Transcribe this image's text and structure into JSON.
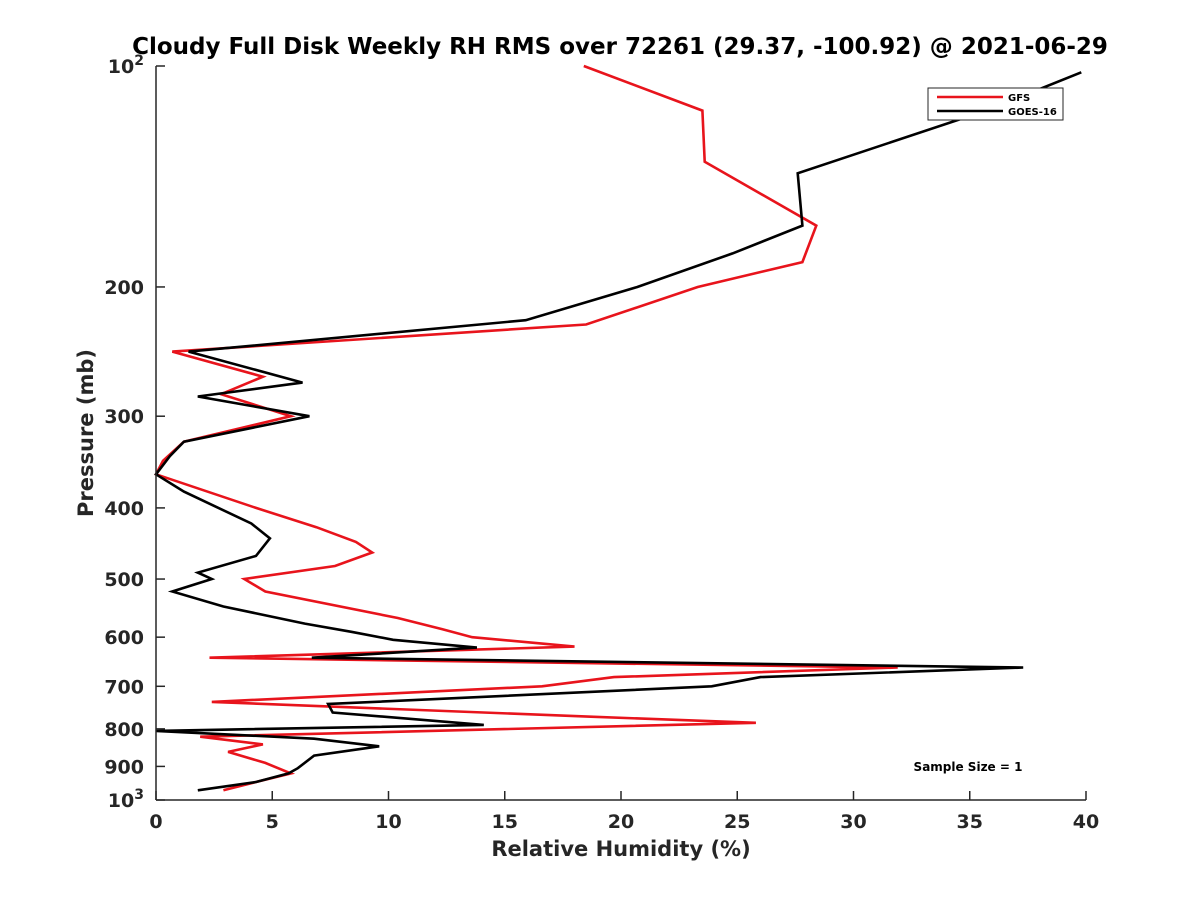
{
  "chart_data": {
    "type": "line",
    "title": "Cloudy Full Disk Weekly RH RMS over 72261 (29.37, -100.92) @ 2021-06-29",
    "xlabel": "Relative Humidity (%)",
    "ylabel": "Pressure (mb)",
    "xlim": [
      0,
      40
    ],
    "ylim": [
      100,
      1000
    ],
    "yscale": "log",
    "yreversed": true,
    "x_ticks": [
      "0",
      "5",
      "10",
      "15",
      "20",
      "25",
      "30",
      "35",
      "40"
    ],
    "y_ticks": [
      {
        "value": 100,
        "base": "10",
        "exp": "2"
      },
      {
        "value": 200,
        "label": "200"
      },
      {
        "value": 300,
        "label": "300"
      },
      {
        "value": 400,
        "label": "400"
      },
      {
        "value": 500,
        "label": "500"
      },
      {
        "value": 600,
        "label": "600"
      },
      {
        "value": 700,
        "label": "700"
      },
      {
        "value": 800,
        "label": "800"
      },
      {
        "value": 900,
        "label": "900"
      },
      {
        "value": 1000,
        "base": "10",
        "exp": "3"
      }
    ],
    "grid": false,
    "legend_position": "top-right",
    "annotation": "Sample Size = 1",
    "series": [
      {
        "name": "GFS",
        "color": "#e8141c",
        "points": [
          [
            18.4,
            100
          ],
          [
            23.5,
            115
          ],
          [
            23.6,
            135
          ],
          [
            28.4,
            165
          ],
          [
            27.8,
            185
          ],
          [
            23.3,
            200
          ],
          [
            18.5,
            225
          ],
          [
            0.7,
            245
          ],
          [
            4.6,
            265
          ],
          [
            2.8,
            280
          ],
          [
            5.8,
            300
          ],
          [
            1.2,
            325
          ],
          [
            0.3,
            345
          ],
          [
            0.0,
            360
          ],
          [
            4.3,
            400
          ],
          [
            6.9,
            425
          ],
          [
            8.6,
            445
          ],
          [
            9.3,
            460
          ],
          [
            7.7,
            480
          ],
          [
            3.8,
            500
          ],
          [
            4.7,
            520
          ],
          [
            10.4,
            565
          ],
          [
            12.3,
            585
          ],
          [
            13.6,
            600
          ],
          [
            18.0,
            618
          ],
          [
            2.3,
            640
          ],
          [
            31.9,
            660
          ],
          [
            19.7,
            680
          ],
          [
            16.6,
            700
          ],
          [
            2.4,
            735
          ],
          [
            18.7,
            770
          ],
          [
            25.8,
            785
          ],
          [
            1.9,
            820
          ],
          [
            4.6,
            840
          ],
          [
            3.1,
            860
          ],
          [
            4.7,
            890
          ],
          [
            5.8,
            920
          ],
          [
            4.3,
            945
          ],
          [
            2.9,
            970
          ]
        ]
      },
      {
        "name": "GOES-16",
        "color": "#000000",
        "points": [
          [
            39.8,
            102
          ],
          [
            35.7,
            115
          ],
          [
            27.6,
            140
          ],
          [
            27.8,
            165
          ],
          [
            24.8,
            180
          ],
          [
            20.7,
            200
          ],
          [
            15.9,
            222
          ],
          [
            1.4,
            245
          ],
          [
            6.3,
            270
          ],
          [
            1.8,
            282
          ],
          [
            6.6,
            300
          ],
          [
            1.2,
            325
          ],
          [
            0.6,
            340
          ],
          [
            0.0,
            360
          ],
          [
            1.2,
            380
          ],
          [
            4.1,
            420
          ],
          [
            4.9,
            440
          ],
          [
            4.3,
            465
          ],
          [
            1.8,
            490
          ],
          [
            2.4,
            500
          ],
          [
            0.7,
            520
          ],
          [
            2.9,
            545
          ],
          [
            6.4,
            575
          ],
          [
            8.4,
            590
          ],
          [
            10.2,
            605
          ],
          [
            13.8,
            620
          ],
          [
            6.7,
            640
          ],
          [
            37.3,
            660
          ],
          [
            26.0,
            680
          ],
          [
            23.9,
            700
          ],
          [
            7.4,
            740
          ],
          [
            7.6,
            760
          ],
          [
            14.1,
            790
          ],
          [
            0.0,
            805
          ],
          [
            6.8,
            825
          ],
          [
            9.6,
            845
          ],
          [
            6.8,
            870
          ],
          [
            6.1,
            905
          ],
          [
            5.7,
            920
          ],
          [
            4.3,
            945
          ],
          [
            1.8,
            970
          ]
        ]
      }
    ]
  }
}
